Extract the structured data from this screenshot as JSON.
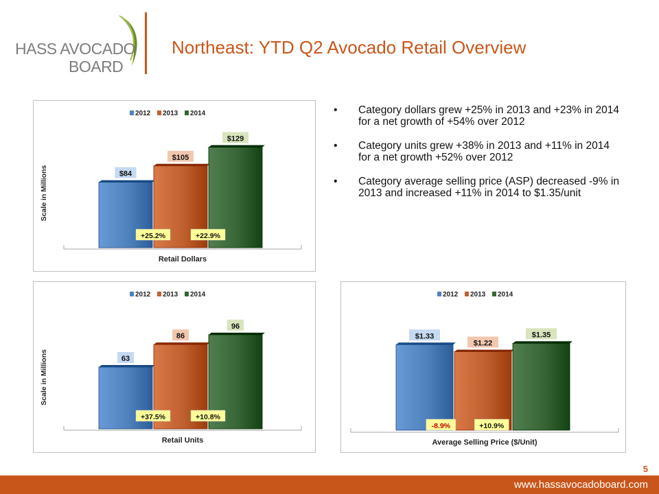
{
  "logo": {
    "line1": "HASS AVOCADO",
    "line2": "BOARD"
  },
  "title": "Northeast: YTD Q2 Avocado Retail Overview",
  "bullets": [
    "Category dollars grew +25% in 2013 and +23% in 2014 for a net growth of +54% over 2012",
    "Category units grew +38% in 2013 and +11% in 2014 for a net growth +52% over 2012",
    "Category average selling price (ASP) decreased -9% in 2013 and increased +11% in 2014 to $1.35/unit"
  ],
  "colors": {
    "2012": "#4f81bd",
    "2013": "#c0602e",
    "2014": "#376535",
    "accent": "#c8561a"
  },
  "chart_data": [
    {
      "type": "bar",
      "legend": [
        "2012",
        "2013",
        "2014"
      ],
      "categories": [
        "2012",
        "2013",
        "2014"
      ],
      "values": [
        84,
        105,
        129
      ],
      "value_labels": [
        "$84",
        "$105",
        "$129"
      ],
      "growth_labels": [
        "+25.2%",
        "+22.9%"
      ],
      "xlabel": "Retail Dollars",
      "ylabel": "Scale in Millions",
      "ylim": [
        0,
        140
      ]
    },
    {
      "type": "bar",
      "legend": [
        "2012",
        "2013",
        "2014"
      ],
      "categories": [
        "2012",
        "2013",
        "2014"
      ],
      "values": [
        63,
        86,
        96
      ],
      "value_labels": [
        "63",
        "86",
        "96"
      ],
      "growth_labels": [
        "+37.5%",
        "+10.8%"
      ],
      "xlabel": "Retail Units",
      "ylabel": "Scale in Millions",
      "ylim": [
        0,
        105
      ]
    },
    {
      "type": "bar",
      "legend": [
        "2012",
        "2013",
        "2014"
      ],
      "categories": [
        "2012",
        "2013",
        "2014"
      ],
      "values": [
        1.33,
        1.22,
        1.35
      ],
      "value_labels": [
        "$1.33",
        "$1.22",
        "$1.35"
      ],
      "growth_labels": [
        "-8.9%",
        "+10.9%"
      ],
      "xlabel": "Average Selling Price ($/Unit)",
      "ylabel": "",
      "ylim": [
        0,
        1.45
      ]
    }
  ],
  "page_number": "5",
  "footer_url": "www.hassavocadoboard.com"
}
